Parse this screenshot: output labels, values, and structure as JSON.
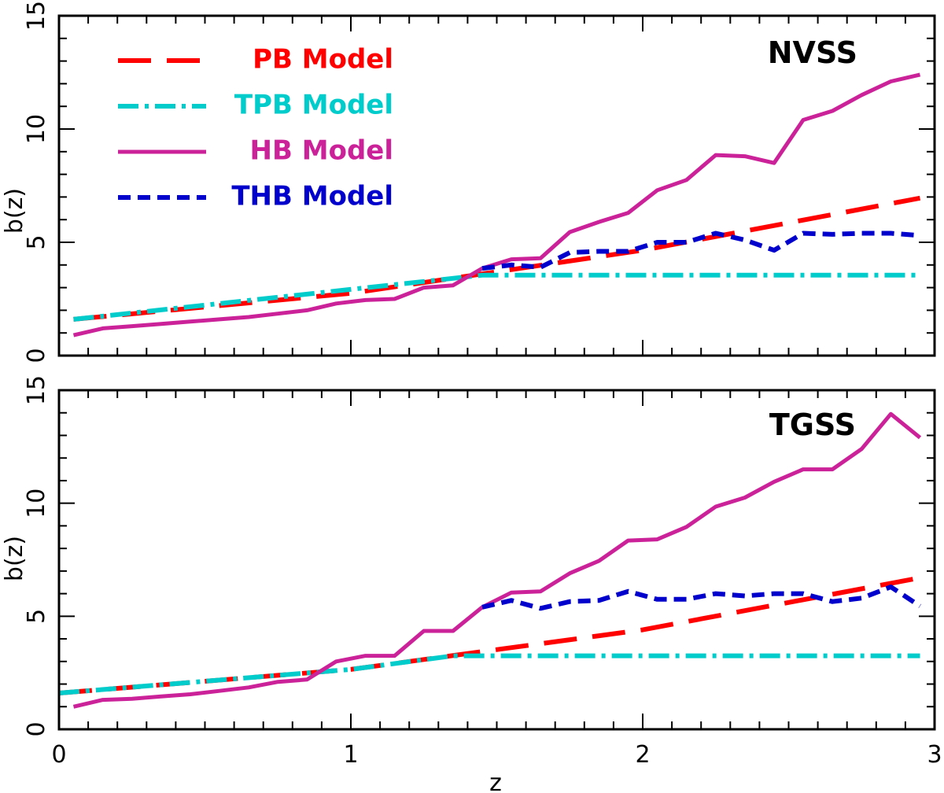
{
  "chart_data": [
    {
      "type": "line",
      "panel_label": "NVSS",
      "xlabel": "",
      "ylabel": "b(z)",
      "xlim": [
        0,
        3
      ],
      "ylim": [
        0,
        15
      ],
      "x_ticks": [
        "0",
        "1",
        "2",
        "3"
      ],
      "y_ticks": [
        "0",
        "5",
        "10",
        "15"
      ],
      "legend_placement": "top-left",
      "series": [
        {
          "name": "PB Model",
          "color": "#ff0000",
          "dash": "long-dash",
          "x": [
            0.05,
            1.0,
            2.0,
            2.95
          ],
          "y": [
            1.6,
            2.75,
            4.65,
            6.95
          ]
        },
        {
          "name": "TPB Model",
          "color": "#00cccc",
          "dash": "dash-dot",
          "x": [
            0.05,
            1.45,
            2.95
          ],
          "y": [
            1.6,
            3.55,
            3.55
          ]
        },
        {
          "name": "HB Model",
          "color": "#cc2299",
          "dash": "solid",
          "x": [
            0.05,
            0.15,
            0.25,
            0.35,
            0.45,
            0.55,
            0.65,
            0.75,
            0.85,
            0.95,
            1.05,
            1.15,
            1.25,
            1.35,
            1.45,
            1.55,
            1.65,
            1.75,
            1.85,
            1.95,
            2.05,
            2.15,
            2.25,
            2.35,
            2.45,
            2.55,
            2.65,
            2.75,
            2.85,
            2.95
          ],
          "y": [
            0.9,
            1.2,
            1.3,
            1.4,
            1.5,
            1.6,
            1.7,
            1.85,
            2.0,
            2.3,
            2.45,
            2.5,
            3.0,
            3.1,
            3.85,
            4.25,
            4.3,
            5.45,
            5.9,
            6.3,
            7.3,
            7.75,
            8.85,
            8.8,
            8.5,
            10.4,
            10.8,
            11.5,
            12.1,
            12.4
          ]
        },
        {
          "name": "THB Model",
          "color": "#0000cc",
          "dash": "short-dash",
          "x": [
            1.45,
            1.55,
            1.65,
            1.75,
            1.85,
            1.95,
            2.05,
            2.15,
            2.25,
            2.35,
            2.45,
            2.55,
            2.65,
            2.75,
            2.85,
            2.95
          ],
          "y": [
            3.85,
            4.0,
            3.9,
            4.55,
            4.6,
            4.6,
            5.0,
            5.0,
            5.4,
            5.1,
            4.65,
            5.4,
            5.35,
            5.4,
            5.4,
            5.3
          ]
        }
      ]
    },
    {
      "type": "line",
      "panel_label": "TGSS",
      "xlabel": "z",
      "ylabel": "b(z)",
      "xlim": [
        0,
        3
      ],
      "ylim": [
        0,
        15
      ],
      "x_ticks": [
        "0",
        "1",
        "2",
        "3"
      ],
      "y_ticks": [
        "0",
        "5",
        "10",
        "15"
      ],
      "series": [
        {
          "name": "PB Model",
          "color": "#ff0000",
          "dash": "long-dash",
          "x": [
            0.0,
            1.0,
            2.0,
            2.95
          ],
          "y": [
            1.6,
            2.65,
            4.4,
            6.7
          ]
        },
        {
          "name": "TPB Model",
          "color": "#00cccc",
          "dash": "dash-dot",
          "x": [
            0.0,
            1.0,
            1.35,
            2.95
          ],
          "y": [
            1.6,
            2.65,
            3.25,
            3.25
          ]
        },
        {
          "name": "HB Model",
          "color": "#cc2299",
          "dash": "solid",
          "x": [
            0.05,
            0.15,
            0.25,
            0.35,
            0.45,
            0.55,
            0.65,
            0.75,
            0.85,
            0.95,
            1.05,
            1.15,
            1.25,
            1.35,
            1.45,
            1.55,
            1.65,
            1.75,
            1.85,
            1.95,
            2.05,
            2.15,
            2.25,
            2.35,
            2.45,
            2.55,
            2.65,
            2.75,
            2.85,
            2.95
          ],
          "y": [
            1.0,
            1.3,
            1.35,
            1.45,
            1.55,
            1.7,
            1.85,
            2.1,
            2.2,
            3.0,
            3.25,
            3.25,
            4.35,
            4.35,
            5.4,
            6.05,
            6.1,
            6.9,
            7.45,
            8.35,
            8.4,
            8.95,
            9.85,
            10.25,
            10.95,
            11.5,
            11.5,
            12.4,
            13.95,
            12.9
          ]
        },
        {
          "name": "THB Model",
          "color": "#0000cc",
          "dash": "short-dash",
          "x": [
            1.45,
            1.55,
            1.65,
            1.75,
            1.85,
            1.95,
            2.05,
            2.15,
            2.25,
            2.35,
            2.45,
            2.55,
            2.65,
            2.75,
            2.85,
            2.95
          ],
          "y": [
            5.4,
            5.7,
            5.35,
            5.65,
            5.7,
            6.1,
            5.75,
            5.75,
            6.0,
            5.9,
            6.0,
            6.0,
            5.65,
            5.8,
            6.3,
            5.45
          ]
        }
      ]
    }
  ]
}
